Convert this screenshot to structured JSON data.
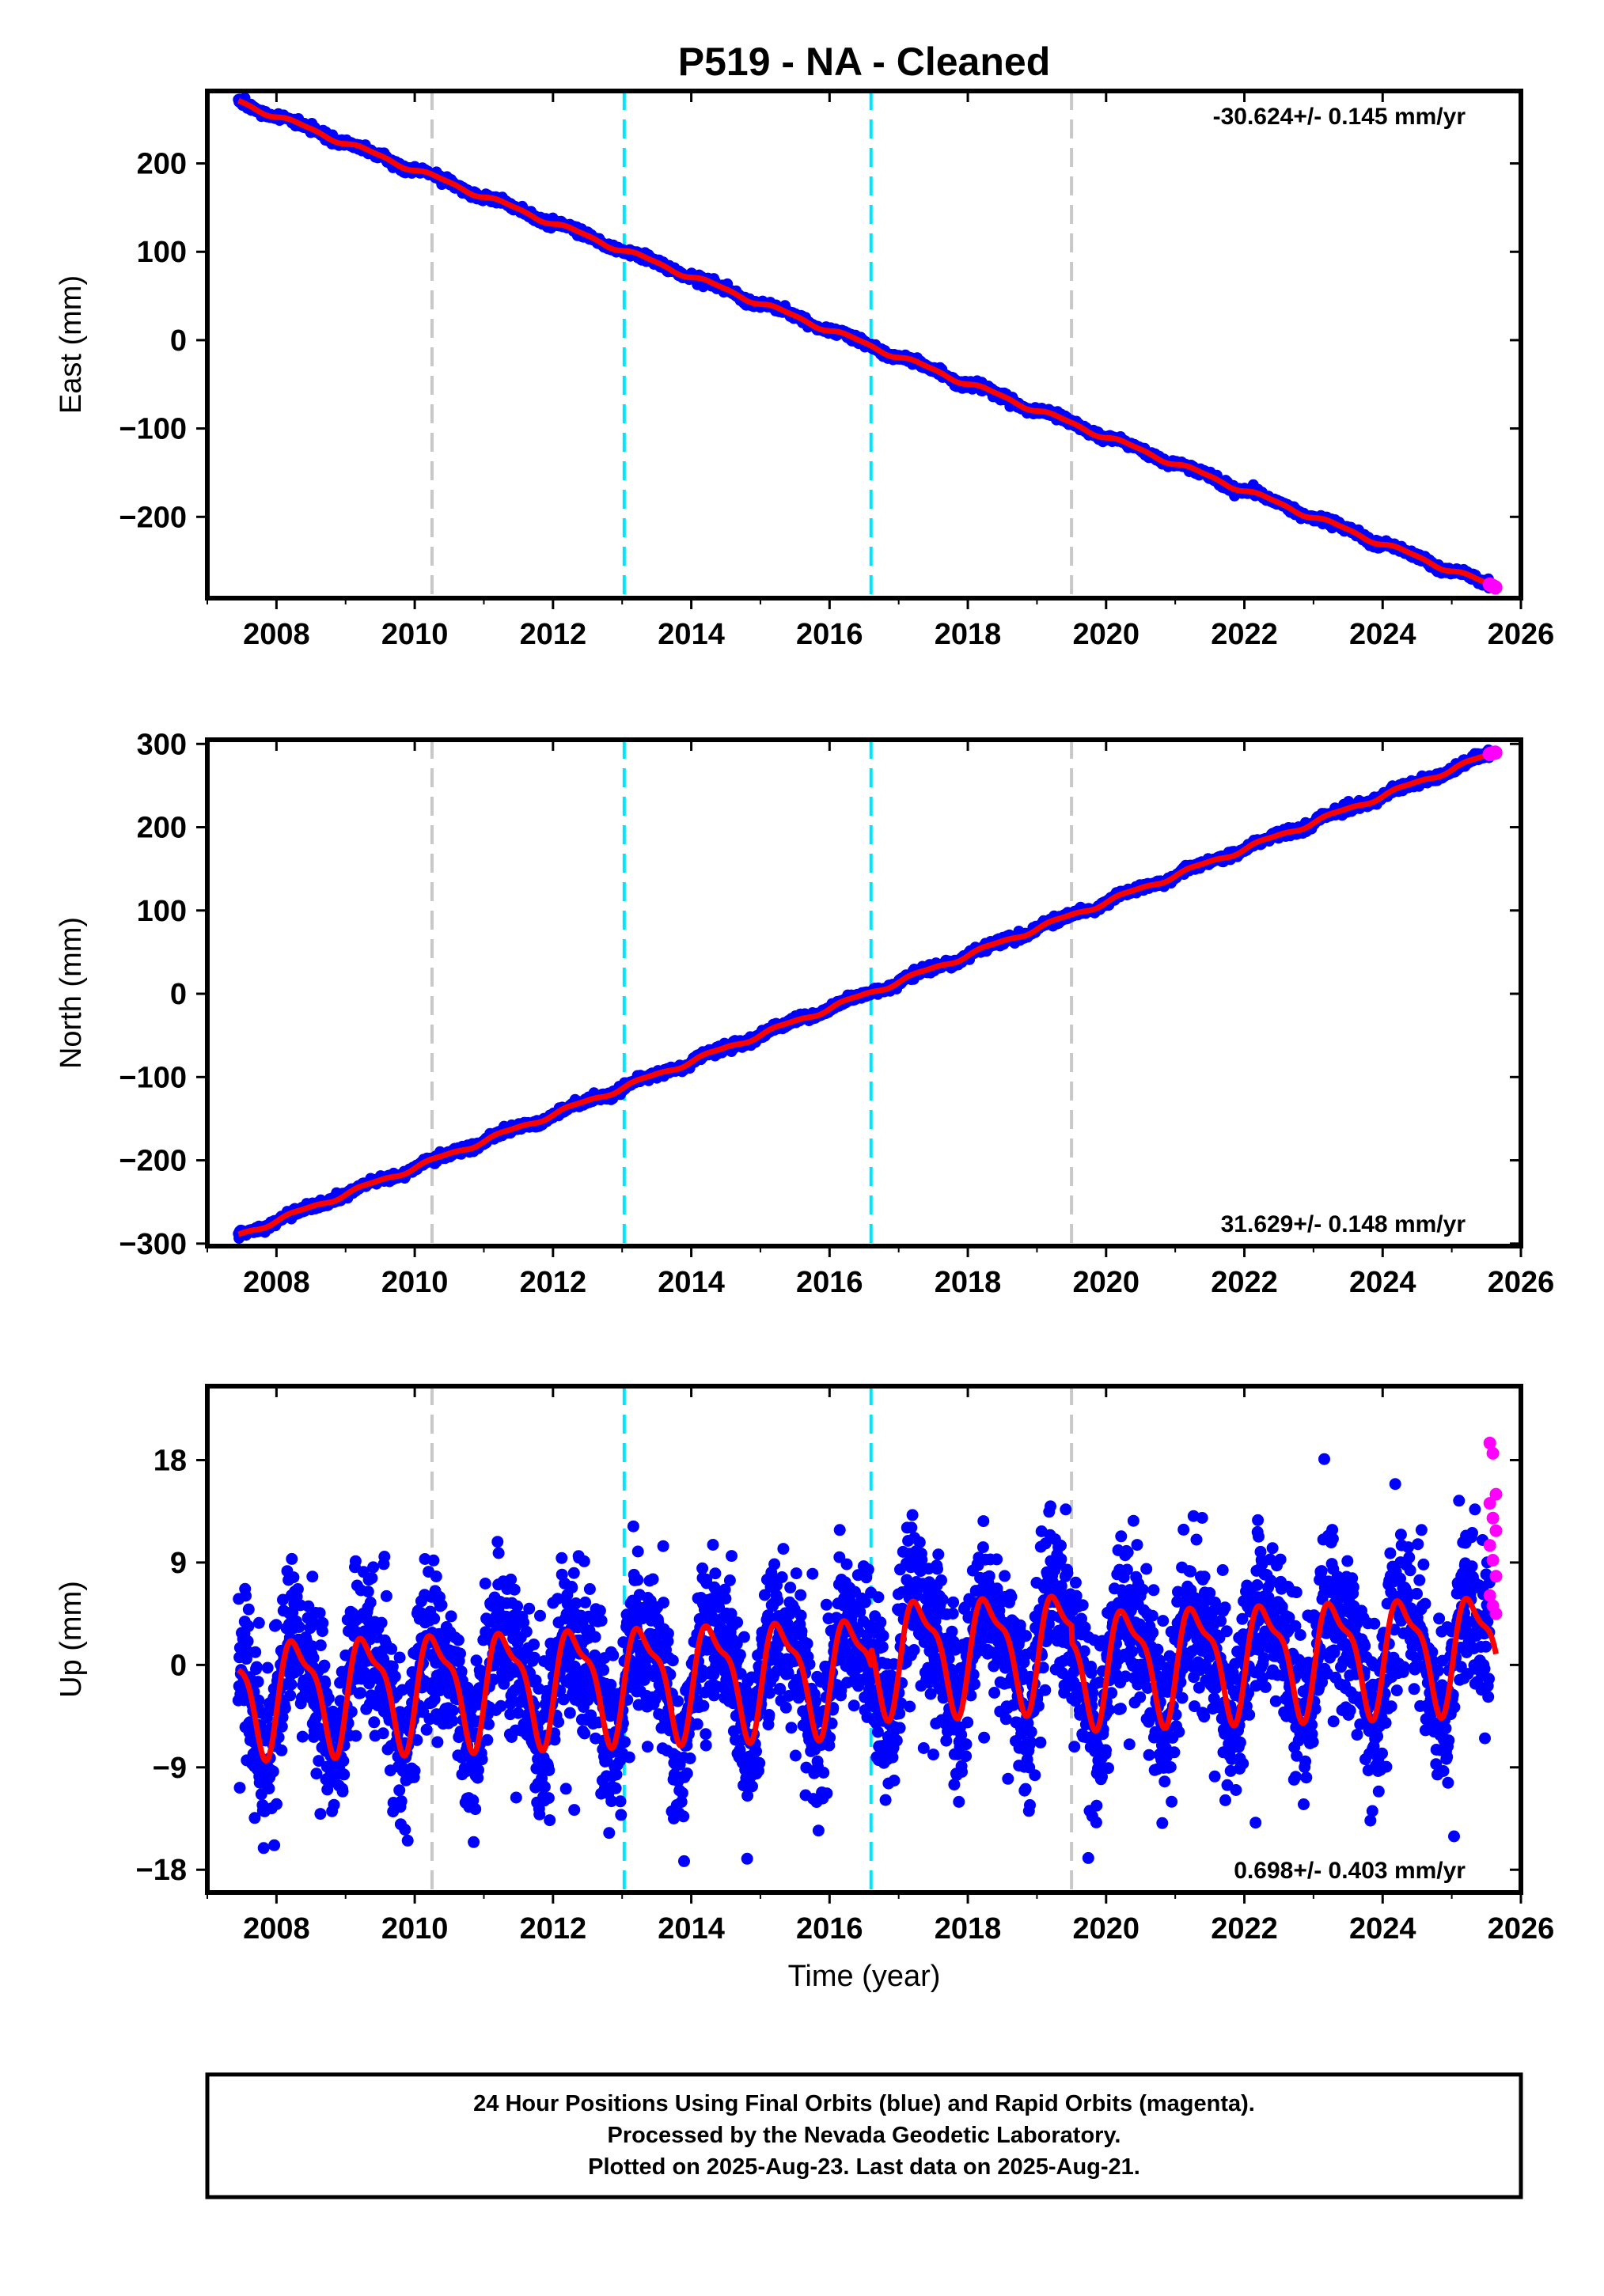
{
  "figure": {
    "title": "P519  - NA - Cleaned",
    "xlabel": "Time (year)",
    "caption_lines": [
      "24 Hour Positions Using Final Orbits (blue) and Rapid Orbits (magenta).",
      "Processed by the Nevada Geodetic Laboratory.",
      "Plotted on 2025-Aug-23. Last data on 2025-Aug-21."
    ]
  },
  "colors": {
    "final_orbits": "#0000ff",
    "rapid_orbits": "#ff00ff",
    "model_fit": "#ff0000",
    "equipment_change_line": "#c8c8c8",
    "earthquake_line": "#00e5ff",
    "frame": "#000000"
  },
  "chart_data": [
    {
      "type": "scatter",
      "panel": "east",
      "ylabel": "East (mm)",
      "xlim": [
        2007.0,
        2026.0
      ],
      "ylim": [
        -292,
        282
      ],
      "x_ticks": [
        2008,
        2010,
        2012,
        2014,
        2016,
        2018,
        2020,
        2022,
        2024,
        2026
      ],
      "y_ticks": [
        -200,
        -100,
        0,
        100,
        200
      ],
      "rate_label": "-30.624+/- 0.145 mm/yr",
      "rate_position": "top-right",
      "data_span": [
        2007.45,
        2025.64
      ],
      "trend": {
        "start": 270,
        "end": -280
      },
      "ref_year": 2016.6,
      "seasonal_amplitude": 2.5,
      "noise": 2.2,
      "steps": [],
      "vertical_lines": [
        {
          "x": 2010.25,
          "kind": "equipment_change"
        },
        {
          "x": 2013.03,
          "kind": "earthquake"
        },
        {
          "x": 2016.6,
          "kind": "earthquake"
        },
        {
          "x": 2019.5,
          "kind": "equipment_change"
        }
      ],
      "series": [
        {
          "name": "Final Orbits",
          "kind": "points",
          "color": "#0000ff"
        },
        {
          "name": "Rapid Orbits",
          "kind": "points",
          "color": "#ff00ff",
          "span": [
            2025.55,
            2025.64
          ]
        },
        {
          "name": "Model",
          "kind": "line",
          "color": "#ff0000"
        }
      ]
    },
    {
      "type": "scatter",
      "panel": "north",
      "ylabel": "North (mm)",
      "xlim": [
        2007.0,
        2026.0
      ],
      "ylim": [
        -303,
        305
      ],
      "x_ticks": [
        2008,
        2010,
        2012,
        2014,
        2016,
        2018,
        2020,
        2022,
        2024,
        2026
      ],
      "y_ticks": [
        -300,
        -200,
        -100,
        0,
        100,
        200,
        300
      ],
      "rate_label": "31.629+/- 0.148 mm/yr",
      "rate_position": "bottom-right",
      "data_span": [
        2007.45,
        2025.64
      ],
      "trend": {
        "start": -290,
        "end": 290
      },
      "ref_year": 2016.6,
      "seasonal_amplitude": 2.5,
      "noise": 2.4,
      "steps": [],
      "vertical_lines": [
        {
          "x": 2010.25,
          "kind": "equipment_change"
        },
        {
          "x": 2013.03,
          "kind": "earthquake"
        },
        {
          "x": 2016.6,
          "kind": "earthquake"
        },
        {
          "x": 2019.5,
          "kind": "equipment_change"
        }
      ],
      "series": [
        {
          "name": "Final Orbits",
          "kind": "points",
          "color": "#0000ff"
        },
        {
          "name": "Rapid Orbits",
          "kind": "points",
          "color": "#ff00ff",
          "span": [
            2025.55,
            2025.64
          ]
        },
        {
          "name": "Model",
          "kind": "line",
          "color": "#ff0000"
        }
      ]
    },
    {
      "type": "scatter",
      "panel": "up",
      "ylabel": "Up (mm)",
      "xlim": [
        2007.0,
        2026.0
      ],
      "ylim": [
        -20,
        24.5
      ],
      "x_ticks": [
        2008,
        2010,
        2012,
        2014,
        2016,
        2018,
        2020,
        2022,
        2024,
        2026
      ],
      "y_ticks": [
        -18,
        -9,
        0,
        9,
        18
      ],
      "rate_label": "0.698+/- 0.403 mm/yr",
      "rate_position": "bottom-right",
      "data_span": [
        2007.45,
        2025.64
      ],
      "trend": {
        "start": -2.5,
        "end": 1.5
      },
      "ref_year": 2016.6,
      "seasonal_amplitude": 4.6,
      "noise": 3.4,
      "steps": [
        {
          "x": 2016.6,
          "size": 1.5
        },
        {
          "x": 2019.5,
          "size": -1.5
        }
      ],
      "vertical_lines": [
        {
          "x": 2010.25,
          "kind": "equipment_change"
        },
        {
          "x": 2013.03,
          "kind": "earthquake"
        },
        {
          "x": 2016.6,
          "kind": "earthquake"
        },
        {
          "x": 2019.5,
          "kind": "equipment_change"
        }
      ],
      "rapid_values": [
        19.5,
        18.6,
        15.0,
        14.2,
        12.9,
        11.8,
        10.5,
        9.2,
        7.8,
        6.1,
        5.2,
        4.5
      ],
      "series": [
        {
          "name": "Final Orbits",
          "kind": "points",
          "color": "#0000ff"
        },
        {
          "name": "Rapid Orbits",
          "kind": "points",
          "color": "#ff00ff",
          "span": [
            2025.55,
            2025.64
          ]
        },
        {
          "name": "Model",
          "kind": "line",
          "color": "#ff0000"
        }
      ]
    }
  ]
}
